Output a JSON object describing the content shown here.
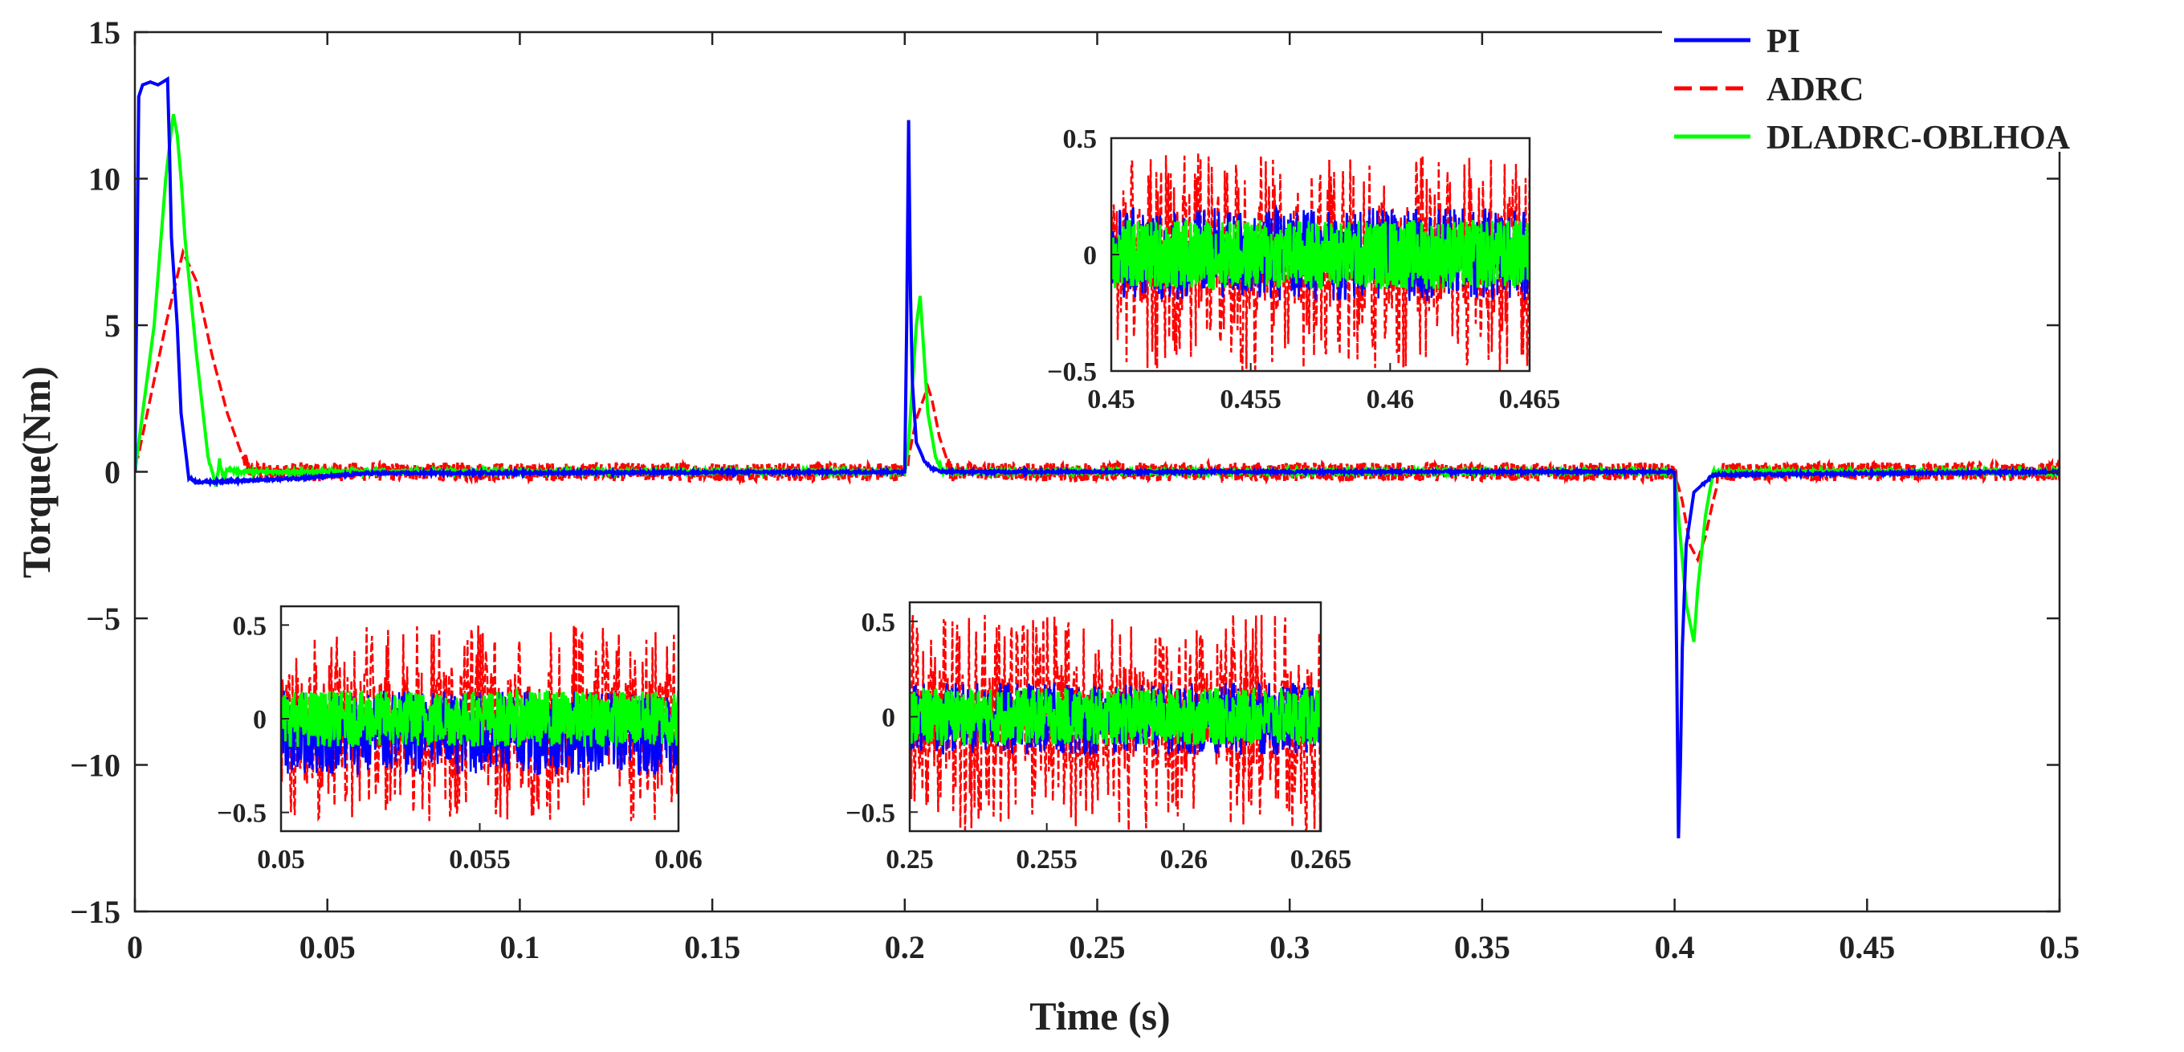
{
  "chart_data": [
    {
      "type": "line",
      "name": "main",
      "title": "",
      "xlabel": "Time (s)",
      "ylabel": "Torque(Nm)",
      "xlim": [
        0,
        0.5
      ],
      "ylim": [
        -15,
        15
      ],
      "xticks": [
        0,
        0.05,
        0.1,
        0.15,
        0.2,
        0.25,
        0.3,
        0.35,
        0.4,
        0.45,
        0.5
      ],
      "xtick_labels": [
        "0",
        "0.05",
        "0.1",
        "0.15",
        "0.2",
        "0.25",
        "0.3",
        "0.35",
        "0.4",
        "0.45",
        "0.5"
      ],
      "yticks": [
        -15,
        -10,
        -5,
        0,
        5,
        10,
        15
      ],
      "ytick_labels": [
        "−15",
        "−10",
        "−5",
        "0",
        "5",
        "10",
        "15"
      ],
      "grid": false,
      "legend_position": "top-right",
      "series": [
        {
          "name": "PI",
          "color": "#0000ff",
          "style": "solid",
          "noise_amplitude": 0.04,
          "x": [
            0,
            0.001,
            0.002,
            0.004,
            0.006,
            0.0085,
            0.009,
            0.0095,
            0.011,
            0.012,
            0.014,
            0.016,
            0.03,
            0.045,
            0.06,
            0.2,
            0.2005,
            0.201,
            0.2015,
            0.202,
            0.203,
            0.205,
            0.207,
            0.21,
            0.4,
            0.4005,
            0.401,
            0.4015,
            0.402,
            0.403,
            0.405,
            0.41,
            0.5
          ],
          "y": [
            0,
            12.8,
            13.2,
            13.3,
            13.2,
            13.4,
            11,
            8,
            5,
            2,
            -0.2,
            -0.35,
            -0.3,
            -0.2,
            -0.05,
            0,
            5,
            12,
            6,
            3,
            1,
            0.4,
            0.1,
            0,
            0,
            -6,
            -12.5,
            -10,
            -6,
            -2.5,
            -0.7,
            -0.1,
            0
          ]
        },
        {
          "name": "ADRC",
          "color": "#ff0000",
          "style": "dashed",
          "noise_amplitude": 0.32,
          "x": [
            0,
            0.008,
            0.0125,
            0.016,
            0.02,
            0.024,
            0.028,
            0.03,
            0.2,
            0.201,
            0.203,
            0.206,
            0.207,
            0.209,
            0.212,
            0.4,
            0.402,
            0.404,
            0.406,
            0.408,
            0.41,
            0.412,
            0.5
          ],
          "y": [
            0,
            5,
            7.5,
            6.5,
            4,
            2,
            0.5,
            0,
            0,
            0.5,
            1.8,
            2.9,
            2.5,
            1.2,
            0,
            0,
            -1,
            -2.5,
            -3,
            -2.2,
            -1,
            0,
            0
          ]
        },
        {
          "name": "DLADRC-OBLHOA",
          "color": "#00ff00",
          "style": "solid",
          "noise_amplitude": 0.06,
          "x": [
            0,
            0.005,
            0.008,
            0.01,
            0.011,
            0.012,
            0.013,
            0.016,
            0.019,
            0.021,
            0.022,
            0.023,
            0.024,
            0.026,
            0.2,
            0.201,
            0.203,
            0.204,
            0.205,
            0.206,
            0.208,
            0.21,
            0.4,
            0.401,
            0.403,
            0.405,
            0.406,
            0.408,
            0.41,
            0.5
          ],
          "y": [
            0,
            5,
            10,
            12.2,
            11.5,
            10,
            8,
            4,
            0.5,
            -0.5,
            0.4,
            -0.3,
            0.1,
            0,
            0,
            1,
            5,
            6,
            4,
            2,
            0.5,
            0,
            0,
            -1.5,
            -4.5,
            -5.8,
            -4,
            -1.5,
            0,
            0
          ]
        }
      ]
    },
    {
      "type": "line",
      "name": "inset-1",
      "xlim": [
        0.05,
        0.06
      ],
      "ylim": [
        -0.6,
        0.6
      ],
      "xticks": [
        0.05,
        0.055,
        0.06
      ],
      "xtick_labels": [
        "0.05",
        "0.055",
        "0.06"
      ],
      "yticks": [
        -0.5,
        0,
        0.5
      ],
      "ytick_labels": [
        "−0.5",
        "0",
        "0.5"
      ],
      "series": [
        {
          "name": "ADRC",
          "color": "#ff0000",
          "amplitude_range": [
            -0.55,
            0.5
          ]
        },
        {
          "name": "PI",
          "color": "#0000ff",
          "amplitude_range": [
            -0.3,
            0.15
          ]
        },
        {
          "name": "DLADRC-OBLHOA",
          "color": "#00ff00",
          "amplitude_range": [
            -0.15,
            0.15
          ]
        }
      ]
    },
    {
      "type": "line",
      "name": "inset-2",
      "xlim": [
        0.25,
        0.265
      ],
      "ylim": [
        -0.6,
        0.6
      ],
      "xticks": [
        0.25,
        0.255,
        0.26,
        0.265
      ],
      "xtick_labels": [
        "0.25",
        "0.255",
        "0.26",
        "0.265"
      ],
      "yticks": [
        -0.5,
        0,
        0.5
      ],
      "ytick_labels": [
        "−0.5",
        "0",
        "0.5"
      ],
      "series": [
        {
          "name": "ADRC",
          "color": "#ff0000",
          "amplitude_range": [
            -0.6,
            0.55
          ]
        },
        {
          "name": "PI",
          "color": "#0000ff",
          "amplitude_range": [
            -0.2,
            0.18
          ]
        },
        {
          "name": "DLADRC-OBLHOA",
          "color": "#00ff00",
          "amplitude_range": [
            -0.15,
            0.15
          ]
        }
      ]
    },
    {
      "type": "line",
      "name": "inset-3",
      "xlim": [
        0.45,
        0.465
      ],
      "ylim": [
        -0.5,
        0.5
      ],
      "xticks": [
        0.45,
        0.455,
        0.46,
        0.465
      ],
      "xtick_labels": [
        "0.45",
        "0.455",
        "0.46",
        "0.465"
      ],
      "yticks": [
        -0.5,
        0,
        0.5
      ],
      "ytick_labels": [
        "−0.5",
        "0",
        "0.5"
      ],
      "series": [
        {
          "name": "ADRC",
          "color": "#ff0000",
          "amplitude_range": [
            -0.5,
            0.45
          ]
        },
        {
          "name": "PI",
          "color": "#0000ff",
          "amplitude_range": [
            -0.2,
            0.2
          ]
        },
        {
          "name": "DLADRC-OBLHOA",
          "color": "#00ff00",
          "amplitude_range": [
            -0.15,
            0.15
          ]
        }
      ]
    }
  ]
}
